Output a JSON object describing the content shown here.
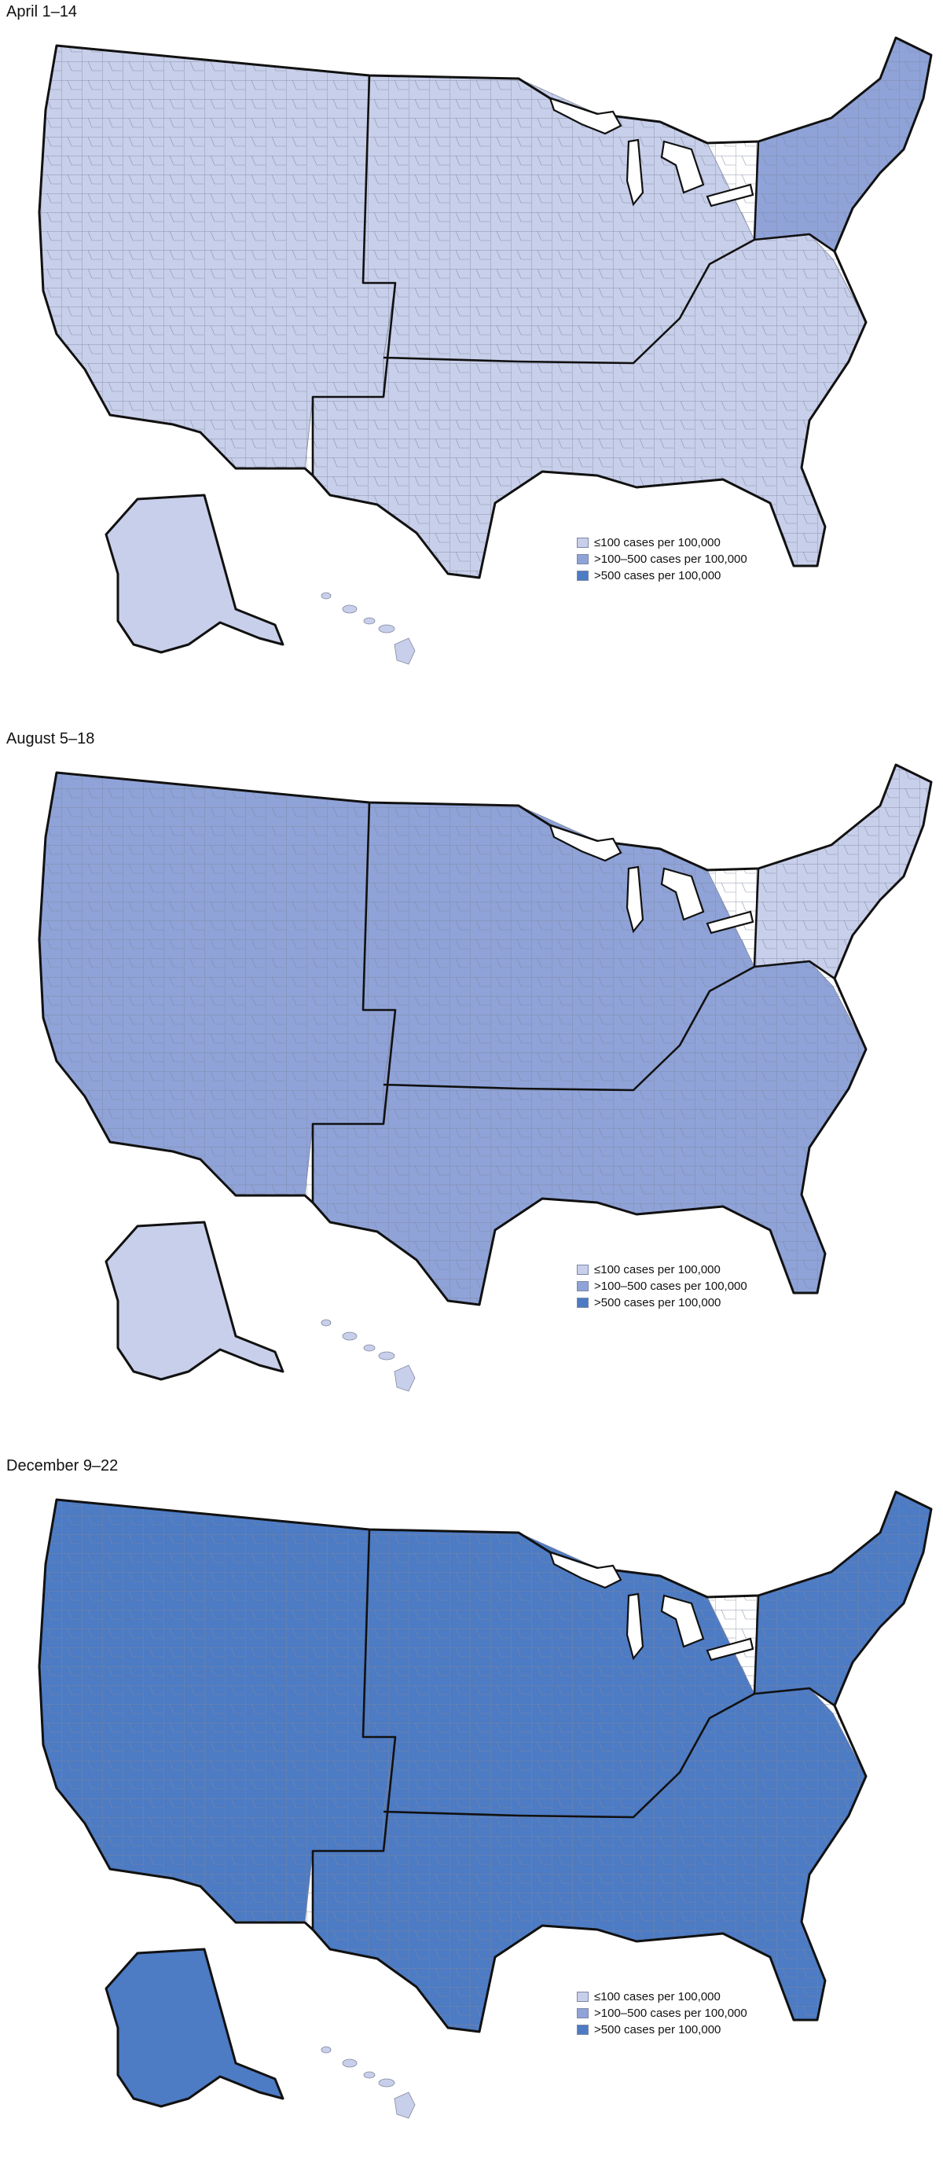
{
  "panels": [
    {
      "title": "April 1–14",
      "fills": {
        "west": "low",
        "northeast": "moderate",
        "midwest": "low",
        "south": "low",
        "alaska": "low",
        "hawaii": "low"
      }
    },
    {
      "title": "August 5–18",
      "fills": {
        "west": "moderate",
        "northeast": "low",
        "midwest": "moderate",
        "south": "moderate",
        "alaska": "low",
        "hawaii": "low"
      }
    },
    {
      "title": "December 9–22",
      "fills": {
        "west": "high",
        "northeast": "high",
        "midwest": "high",
        "south": "high",
        "alaska": "high",
        "hawaii": "low"
      }
    }
  ],
  "legend": [
    {
      "key": "low",
      "label": "≤100 cases per 100,000",
      "color": "#c8cfea"
    },
    {
      "key": "moderate",
      "label": ">100–500 cases per 100,000",
      "color": "#8fa3d8"
    },
    {
      "key": "high",
      "label": ">500 cases per 100,000",
      "color": "#4d7bc4"
    }
  ]
}
